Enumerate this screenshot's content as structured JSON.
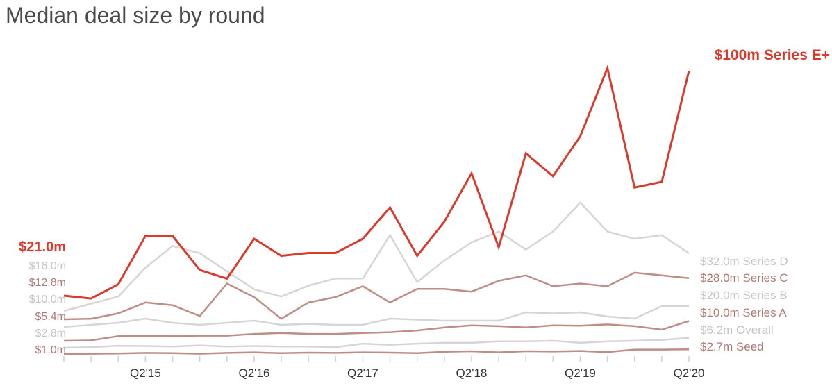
{
  "chart_data": {
    "type": "line",
    "title": "Median deal size by round",
    "xlabel": "",
    "ylabel": "",
    "grid": false,
    "x": [
      "Q3'14",
      "Q4'14",
      "Q1'15",
      "Q2'15",
      "Q3'15",
      "Q4'15",
      "Q1'16",
      "Q2'16",
      "Q3'16",
      "Q4'16",
      "Q1'17",
      "Q2'17",
      "Q3'17",
      "Q4'17",
      "Q1'18",
      "Q2'18",
      "Q3'18",
      "Q4'18",
      "Q1'19",
      "Q2'19",
      "Q3'19",
      "Q4'19",
      "Q1'20",
      "Q2'20"
    ],
    "x_tick_labels": [
      "Q2'15",
      "Q2'16",
      "Q2'17",
      "Q2'18",
      "Q2'19",
      "Q2'20"
    ],
    "x_tick_positions": [
      "Q2'15",
      "Q2'16",
      "Q2'17",
      "Q2'18",
      "Q2'19",
      "Q2'20"
    ],
    "series": [
      {
        "name": "Series E+",
        "color": "#d93a2b",
        "start_label": "$21.0m",
        "end_label": "$100m Series E+",
        "values": [
          21,
          20,
          25,
          42,
          42,
          30,
          27,
          41,
          35,
          36,
          36,
          41,
          52,
          35,
          47,
          64,
          38,
          71,
          63,
          77,
          101,
          59,
          61,
          100
        ]
      },
      {
        "name": "Series D",
        "color": "#d7d4d4",
        "start_label": "$16.0m",
        "end_label": "$32.0m Series D",
        "values": [
          16,
          18,
          20,
          28,
          34,
          32,
          27,
          22,
          20,
          23,
          25,
          25,
          37,
          24,
          30,
          35,
          38,
          33,
          38,
          46,
          38,
          36,
          37,
          32
        ]
      },
      {
        "name": "Series C",
        "color": "#c08c86",
        "start_label": "$12.8m",
        "end_label": "$28.0m Series C",
        "values": [
          12.8,
          13,
          15,
          19,
          18,
          14,
          26,
          21,
          13,
          19,
          21,
          25,
          19,
          24,
          24,
          23,
          27,
          29,
          25,
          26,
          25,
          30,
          29,
          28
        ]
      },
      {
        "name": "Series B",
        "color": "#d7d4d4",
        "start_label": "$10.0m",
        "end_label": "$20.0m Series B",
        "values": [
          10,
          11,
          12,
          14,
          12,
          11,
          12,
          13,
          11,
          11.5,
          11,
          11,
          14,
          13.5,
          13,
          13,
          13,
          17,
          16.5,
          17,
          15,
          14,
          20,
          20
        ]
      },
      {
        "name": "Series A",
        "color": "#c08c86",
        "start_label": "$5.4m",
        "end_label": "$10.0m Series A",
        "values": [
          5.4,
          5.5,
          6.5,
          6.5,
          6.5,
          6.6,
          6.6,
          7.0,
          7.2,
          7.0,
          7.0,
          7.2,
          7.4,
          7.8,
          8.5,
          9.0,
          8.8,
          8.5,
          9.0,
          8.9,
          9.2,
          8.8,
          8.0,
          10.0
        ]
      },
      {
        "name": "Overall",
        "color": "#d7d4d4",
        "start_label": "$2.8m",
        "end_label": "$6.2m Overall",
        "values": [
          2.8,
          3.0,
          3.5,
          3.4,
          3.2,
          3.6,
          3.2,
          3.4,
          3.2,
          3.2,
          3.0,
          4.2,
          3.8,
          4.2,
          4.5,
          4.5,
          5.0,
          5.0,
          5.2,
          4.5,
          5.0,
          5.2,
          5.5,
          6.2
        ]
      },
      {
        "name": "Seed",
        "color": "#c08c86",
        "start_label": "$1.0m",
        "end_label": "$2.7m Seed",
        "values": [
          1.0,
          1.1,
          1.2,
          1.4,
          1.3,
          1.1,
          1.4,
          1.6,
          1.3,
          1.5,
          1.4,
          1.6,
          1.5,
          1.3,
          1.8,
          2.0,
          1.6,
          2.0,
          1.9,
          2.1,
          1.7,
          2.6,
          2.6,
          2.7
        ]
      }
    ]
  }
}
